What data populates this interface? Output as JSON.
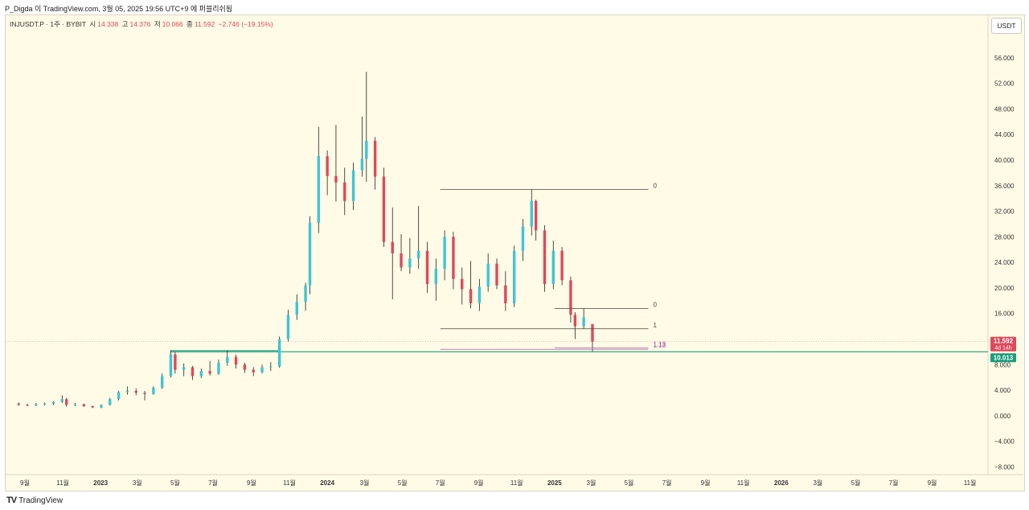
{
  "attribution": "P_Digda 이 TradingView.com, 3월 05, 2025 19:56 UTC+9 에 퍼블리쉬됨",
  "symbol": {
    "name": "INJUSDT.P · 1주 · BYBIT",
    "open_label": "시",
    "open": "14.338",
    "high_label": "고",
    "high": "14.376",
    "low_label": "저",
    "low": "10.066",
    "close_label": "종",
    "close": "11.592",
    "change": "−2.746 (−19.15%)"
  },
  "unit": "USDT",
  "footer": {
    "brand": "TradingView"
  },
  "colors": {
    "up": "#3ec5d6",
    "down": "#e0485a",
    "support": "#1a9c7c",
    "background": "#fffbe6"
  },
  "chart_data": {
    "type": "candlestick",
    "ylim": [
      -9.2,
      60
    ],
    "yticks": [
      -8,
      -4,
      0,
      4,
      8,
      12,
      16,
      20,
      24,
      28,
      32,
      36,
      40,
      44,
      48,
      52,
      56
    ],
    "ytick_labels": [
      "−8.000",
      "−4.000",
      "0.000",
      "4.000",
      "8.000",
      "12.000",
      "16.000",
      "20.000",
      "24.000",
      "28.000",
      "32.000",
      "36.000",
      "40.000",
      "44.000",
      "48.000",
      "52.000",
      "56.000"
    ],
    "xticks": [
      "9월",
      "11월",
      "2023",
      "3월",
      "5월",
      "7월",
      "9월",
      "11월",
      "2024",
      "3월",
      "5월",
      "7월",
      "9월",
      "11월",
      "2025",
      "3월",
      "5월",
      "7월",
      "9월",
      "11월",
      "2026",
      "3월",
      "5월",
      "7월",
      "9월",
      "11월"
    ],
    "xrange": [
      "2022-08-01",
      "2026-11-30"
    ],
    "xtick_dates": [
      "2022-09-01",
      "2022-11-01",
      "2023-01-01",
      "2023-03-01",
      "2023-05-01",
      "2023-07-01",
      "2023-09-01",
      "2023-11-01",
      "2024-01-01",
      "2024-03-01",
      "2024-05-01",
      "2024-07-01",
      "2024-09-01",
      "2024-11-01",
      "2025-01-01",
      "2025-03-01",
      "2025-05-01",
      "2025-07-01",
      "2025-09-01",
      "2025-11-01",
      "2026-01-01",
      "2026-03-01",
      "2026-05-01",
      "2026-07-01",
      "2026-09-01",
      "2026-11-01"
    ],
    "candles": [
      {
        "date": "2022-08-22",
        "open": 1.9,
        "high": 2.1,
        "low": 1.6,
        "close": 1.7
      },
      {
        "date": "2022-09-05",
        "open": 1.7,
        "high": 1.9,
        "low": 1.5,
        "close": 1.6
      },
      {
        "date": "2022-09-19",
        "open": 1.6,
        "high": 2.0,
        "low": 1.5,
        "close": 1.8
      },
      {
        "date": "2022-10-03",
        "open": 1.8,
        "high": 2.1,
        "low": 1.6,
        "close": 1.9
      },
      {
        "date": "2022-10-17",
        "open": 1.9,
        "high": 2.3,
        "low": 1.7,
        "close": 2.2
      },
      {
        "date": "2022-10-31",
        "open": 2.2,
        "high": 3.2,
        "low": 2.0,
        "close": 2.6
      },
      {
        "date": "2022-11-07",
        "open": 2.6,
        "high": 2.8,
        "low": 1.4,
        "close": 1.7
      },
      {
        "date": "2022-11-21",
        "open": 1.7,
        "high": 2.0,
        "low": 1.5,
        "close": 1.8
      },
      {
        "date": "2022-12-05",
        "open": 1.8,
        "high": 1.9,
        "low": 1.4,
        "close": 1.5
      },
      {
        "date": "2022-12-19",
        "open": 1.5,
        "high": 1.6,
        "low": 1.2,
        "close": 1.3
      },
      {
        "date": "2023-01-02",
        "open": 1.3,
        "high": 1.8,
        "low": 1.2,
        "close": 1.7
      },
      {
        "date": "2023-01-16",
        "open": 1.7,
        "high": 2.8,
        "low": 1.6,
        "close": 2.6
      },
      {
        "date": "2023-01-30",
        "open": 2.6,
        "high": 3.9,
        "low": 2.4,
        "close": 3.7
      },
      {
        "date": "2023-02-13",
        "open": 3.7,
        "high": 4.6,
        "low": 3.3,
        "close": 3.9
      },
      {
        "date": "2023-02-27",
        "open": 3.9,
        "high": 4.3,
        "low": 3.2,
        "close": 3.6
      },
      {
        "date": "2023-03-13",
        "open": 3.6,
        "high": 3.9,
        "low": 2.4,
        "close": 3.4
      },
      {
        "date": "2023-03-27",
        "open": 3.4,
        "high": 4.6,
        "low": 3.3,
        "close": 4.4
      },
      {
        "date": "2023-04-10",
        "open": 4.4,
        "high": 6.6,
        "low": 4.2,
        "close": 6.2
      },
      {
        "date": "2023-04-24",
        "open": 6.2,
        "high": 10.2,
        "low": 6.0,
        "close": 9.6
      },
      {
        "date": "2023-05-01",
        "open": 9.6,
        "high": 10.0,
        "low": 6.6,
        "close": 7.2
      },
      {
        "date": "2023-05-15",
        "open": 7.2,
        "high": 8.2,
        "low": 6.2,
        "close": 7.6
      },
      {
        "date": "2023-05-29",
        "open": 7.6,
        "high": 7.8,
        "low": 5.6,
        "close": 6.2
      },
      {
        "date": "2023-06-12",
        "open": 6.2,
        "high": 7.4,
        "low": 5.9,
        "close": 7.0
      },
      {
        "date": "2023-06-26",
        "open": 7.0,
        "high": 8.6,
        "low": 6.3,
        "close": 6.6
      },
      {
        "date": "2023-07-10",
        "open": 6.6,
        "high": 8.8,
        "low": 6.4,
        "close": 8.3
      },
      {
        "date": "2023-07-24",
        "open": 8.3,
        "high": 10.2,
        "low": 7.8,
        "close": 9.2
      },
      {
        "date": "2023-08-07",
        "open": 9.2,
        "high": 9.6,
        "low": 7.4,
        "close": 8.0
      },
      {
        "date": "2023-08-21",
        "open": 8.0,
        "high": 8.3,
        "low": 6.7,
        "close": 7.2
      },
      {
        "date": "2023-09-04",
        "open": 7.2,
        "high": 7.6,
        "low": 6.2,
        "close": 6.8
      },
      {
        "date": "2023-09-18",
        "open": 6.8,
        "high": 8.0,
        "low": 6.6,
        "close": 7.6
      },
      {
        "date": "2023-10-02",
        "open": 7.6,
        "high": 8.4,
        "low": 7.0,
        "close": 7.7
      },
      {
        "date": "2023-10-16",
        "open": 7.7,
        "high": 12.4,
        "low": 7.5,
        "close": 12.0
      },
      {
        "date": "2023-10-30",
        "open": 12.0,
        "high": 16.6,
        "low": 11.6,
        "close": 15.8
      },
      {
        "date": "2023-11-13",
        "open": 15.8,
        "high": 19.0,
        "low": 15.0,
        "close": 17.8
      },
      {
        "date": "2023-11-27",
        "open": 17.8,
        "high": 20.8,
        "low": 16.4,
        "close": 20.4
      },
      {
        "date": "2023-12-04",
        "open": 20.4,
        "high": 31.2,
        "low": 19.0,
        "close": 30.2
      },
      {
        "date": "2023-12-18",
        "open": 30.2,
        "high": 45.2,
        "low": 28.6,
        "close": 40.6
      },
      {
        "date": "2024-01-01",
        "open": 40.6,
        "high": 41.5,
        "low": 34.5,
        "close": 37.5
      },
      {
        "date": "2024-01-15",
        "open": 37.5,
        "high": 45.5,
        "low": 33.5,
        "close": 36.5
      },
      {
        "date": "2024-01-29",
        "open": 36.5,
        "high": 38.8,
        "low": 31.4,
        "close": 33.6
      },
      {
        "date": "2024-02-12",
        "open": 33.6,
        "high": 39.6,
        "low": 32.2,
        "close": 38.4
      },
      {
        "date": "2024-02-26",
        "open": 38.4,
        "high": 46.8,
        "low": 37.4,
        "close": 40.2
      },
      {
        "date": "2024-03-04",
        "open": 40.2,
        "high": 53.8,
        "low": 36.6,
        "close": 43.0
      },
      {
        "date": "2024-03-18",
        "open": 43.0,
        "high": 43.6,
        "low": 35.4,
        "close": 37.4
      },
      {
        "date": "2024-04-01",
        "open": 37.4,
        "high": 38.8,
        "low": 26.4,
        "close": 27.2
      },
      {
        "date": "2024-04-15",
        "open": 27.2,
        "high": 32.6,
        "low": 18.2,
        "close": 25.4
      },
      {
        "date": "2024-04-29",
        "open": 25.4,
        "high": 28.4,
        "low": 22.6,
        "close": 23.2
      },
      {
        "date": "2024-05-13",
        "open": 23.2,
        "high": 27.8,
        "low": 22.2,
        "close": 24.6
      },
      {
        "date": "2024-05-27",
        "open": 24.6,
        "high": 32.8,
        "low": 23.0,
        "close": 25.8
      },
      {
        "date": "2024-06-10",
        "open": 25.8,
        "high": 27.2,
        "low": 19.2,
        "close": 20.6
      },
      {
        "date": "2024-06-24",
        "open": 20.6,
        "high": 24.6,
        "low": 18.0,
        "close": 23.0
      },
      {
        "date": "2024-07-08",
        "open": 23.0,
        "high": 29.0,
        "low": 21.2,
        "close": 28.0
      },
      {
        "date": "2024-07-22",
        "open": 28.0,
        "high": 28.8,
        "low": 19.8,
        "close": 21.4
      },
      {
        "date": "2024-08-05",
        "open": 21.4,
        "high": 23.2,
        "low": 17.4,
        "close": 19.8
      },
      {
        "date": "2024-08-19",
        "open": 19.8,
        "high": 24.2,
        "low": 16.8,
        "close": 17.6
      },
      {
        "date": "2024-09-02",
        "open": 17.6,
        "high": 21.4,
        "low": 16.4,
        "close": 20.2
      },
      {
        "date": "2024-09-16",
        "open": 20.2,
        "high": 25.4,
        "low": 19.4,
        "close": 23.8
      },
      {
        "date": "2024-09-30",
        "open": 23.8,
        "high": 24.6,
        "low": 19.8,
        "close": 20.4
      },
      {
        "date": "2024-10-14",
        "open": 20.4,
        "high": 22.6,
        "low": 16.4,
        "close": 17.6
      },
      {
        "date": "2024-10-28",
        "open": 17.6,
        "high": 26.6,
        "low": 17.0,
        "close": 25.8
      },
      {
        "date": "2024-11-11",
        "open": 25.8,
        "high": 30.8,
        "low": 24.2,
        "close": 29.6
      },
      {
        "date": "2024-11-25",
        "open": 29.6,
        "high": 35.4,
        "low": 28.2,
        "close": 33.6
      },
      {
        "date": "2024-12-02",
        "open": 33.6,
        "high": 33.8,
        "low": 27.4,
        "close": 29.0
      },
      {
        "date": "2024-12-16",
        "open": 29.0,
        "high": 29.8,
        "low": 19.4,
        "close": 20.6
      },
      {
        "date": "2024-12-30",
        "open": 20.6,
        "high": 27.4,
        "low": 19.8,
        "close": 25.8
      },
      {
        "date": "2025-01-13",
        "open": 25.8,
        "high": 26.4,
        "low": 20.4,
        "close": 21.2
      },
      {
        "date": "2025-01-27",
        "open": 21.2,
        "high": 21.8,
        "low": 14.6,
        "close": 15.8
      },
      {
        "date": "2025-02-03",
        "open": 15.8,
        "high": 16.2,
        "low": 12.0,
        "close": 14.0
      },
      {
        "date": "2025-02-17",
        "open": 14.0,
        "high": 16.8,
        "low": 13.6,
        "close": 15.4
      },
      {
        "date": "2025-03-03",
        "open": 14.338,
        "high": 14.376,
        "low": 10.066,
        "close": 11.592
      }
    ],
    "annotations": [
      {
        "type": "hline",
        "name": "major-high-level",
        "x1": "2024-07-01",
        "x2": "2025-06-01",
        "y": 35.4,
        "label": "0"
      },
      {
        "type": "hline",
        "name": "major-low-level",
        "x1": "2024-07-01",
        "x2": "2025-06-01",
        "y": 13.6,
        "label": "1"
      },
      {
        "type": "hline",
        "name": "major-ext-level",
        "x1": "2024-07-01",
        "x2": "2025-06-01",
        "y": 10.4,
        "label": "1.13"
      },
      {
        "type": "hline",
        "name": "minor-high-level",
        "x1": "2025-01-01",
        "x2": "2025-06-01",
        "y": 16.8,
        "label": "0"
      },
      {
        "type": "hline",
        "name": "minor-ext-level",
        "x1": "2025-01-01",
        "x2": "2025-06-01",
        "y": 10.6,
        "label": "1.13"
      }
    ],
    "support_line": {
      "x1": "2023-04-24",
      "y": 10.013
    },
    "support_box": {
      "x1": "2023-04-24",
      "x2": "2023-10-16",
      "y1": 10.2,
      "y2": 10.013
    },
    "price_tags": [
      {
        "name": "last-price",
        "value": "11.592",
        "sub": "4d 14h",
        "y": 11.592,
        "color": "#e0485a"
      },
      {
        "name": "support-price",
        "value": "10.013",
        "y": 10.013,
        "color": "#1a9c7c"
      }
    ]
  }
}
